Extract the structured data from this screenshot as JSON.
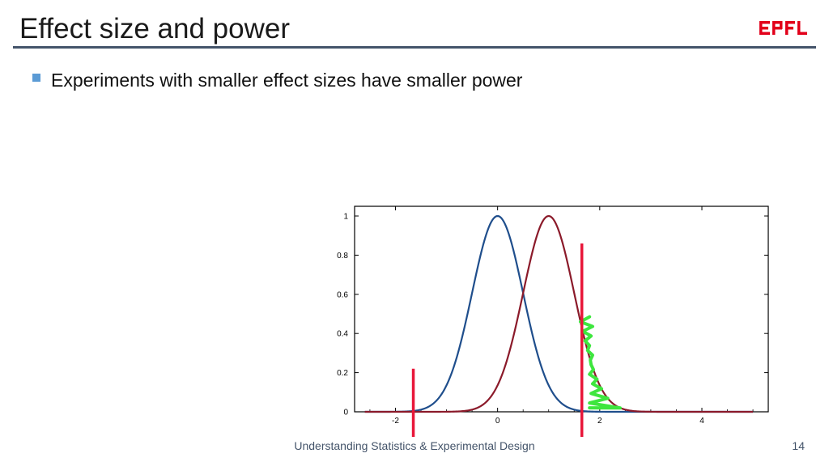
{
  "slide": {
    "title": "Effect size and power",
    "bullet": "Experiments with smaller effect sizes have smaller power",
    "footer": "Understanding Statistics & Experimental Design",
    "page_number": "14",
    "logo_text": "EPFL"
  },
  "colors": {
    "accent": "#5b9bd5",
    "title_rule": "#44546a",
    "logo_red": "#e2001a"
  },
  "chart_data": {
    "type": "line",
    "title": "",
    "xlabel": "",
    "ylabel": "",
    "xlim": [
      -2.8,
      5.3
    ],
    "ylim": [
      0,
      1.05
    ],
    "xticks": [
      -2,
      0,
      2,
      4
    ],
    "yticks": [
      0,
      0.2,
      0.4,
      0.6,
      0.8,
      1
    ],
    "ytick_labels": [
      "0",
      "0.2",
      "0.4",
      "0.6",
      "0.8",
      "1"
    ],
    "series": [
      {
        "mean": 0,
        "sd": 0.5,
        "color": "#1f4e8c"
      },
      {
        "mean": 1,
        "sd": 0.5,
        "color": "#8b1a2a"
      }
    ],
    "threshold_lines": [
      {
        "x": -1.65,
        "y_top": 0.22,
        "color": "#e8173a"
      },
      {
        "x": 1.65,
        "y_top": 0.86,
        "color": "#e8173a"
      }
    ],
    "shaded_region": {
      "x_from": 1.8,
      "x_to": 2.7,
      "color": "#3ee63e"
    },
    "grid": false,
    "legend": "none"
  }
}
